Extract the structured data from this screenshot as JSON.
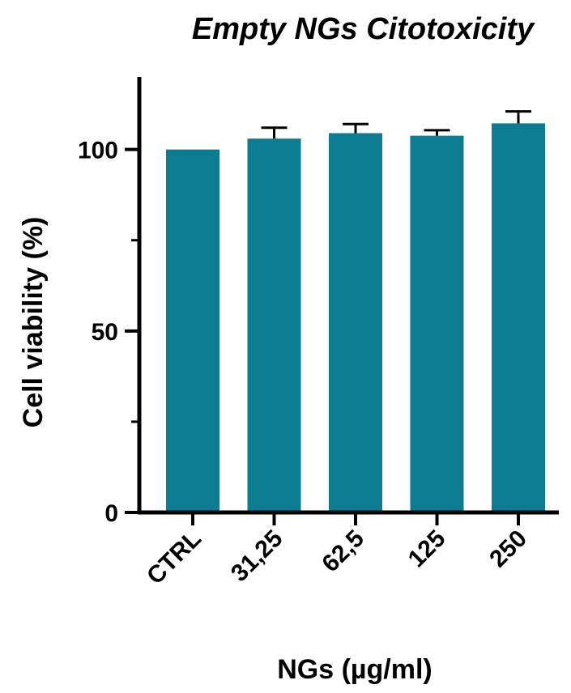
{
  "chart_data": {
    "type": "bar",
    "title": "Empty NGs Citotoxicity",
    "xlabel": "NGs (µg/ml)",
    "ylabel": "Cell viability (%)",
    "categories": [
      "CTRL",
      "31,25",
      "62,5",
      "125",
      "250"
    ],
    "values": [
      100,
      103,
      104.5,
      103.8,
      107.2
    ],
    "error_upper": [
      0,
      3,
      2.5,
      1.5,
      3.3
    ],
    "ylim": [
      0,
      120
    ],
    "yticks": [
      0,
      50,
      100
    ],
    "yticks_minor": [
      25,
      75
    ],
    "bar_color": "#0b7c92",
    "axis_color": "#000000",
    "grid": false,
    "legend": "none"
  }
}
